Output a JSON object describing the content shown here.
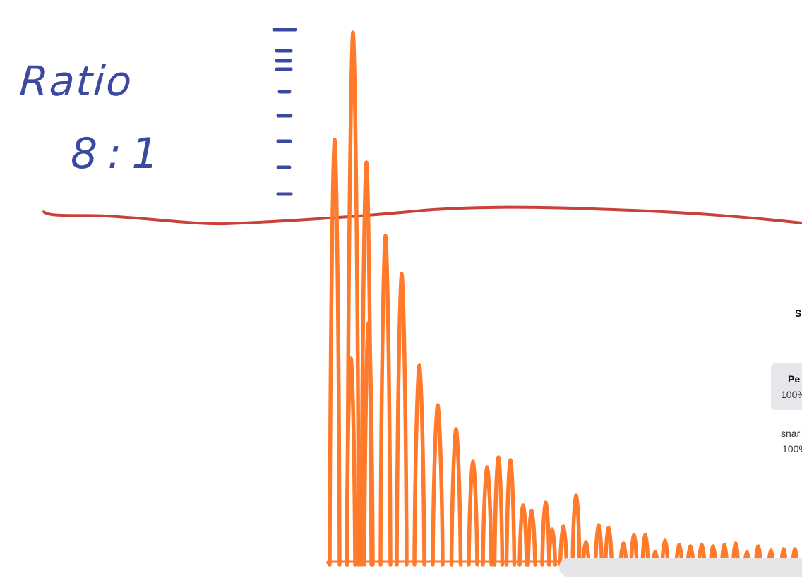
{
  "annotation": {
    "label": "Ratio",
    "value": "8:1",
    "ink_color": "#3b4aa0",
    "threshold_color": "#c8423a",
    "waveform_color": "#ff7a2a"
  },
  "panel": {
    "title": "S",
    "selected_item": {
      "name": "Pe",
      "percent": "100%"
    },
    "item": {
      "name": "snar",
      "percent": "100%"
    },
    "background": "#e5e7ea"
  }
}
